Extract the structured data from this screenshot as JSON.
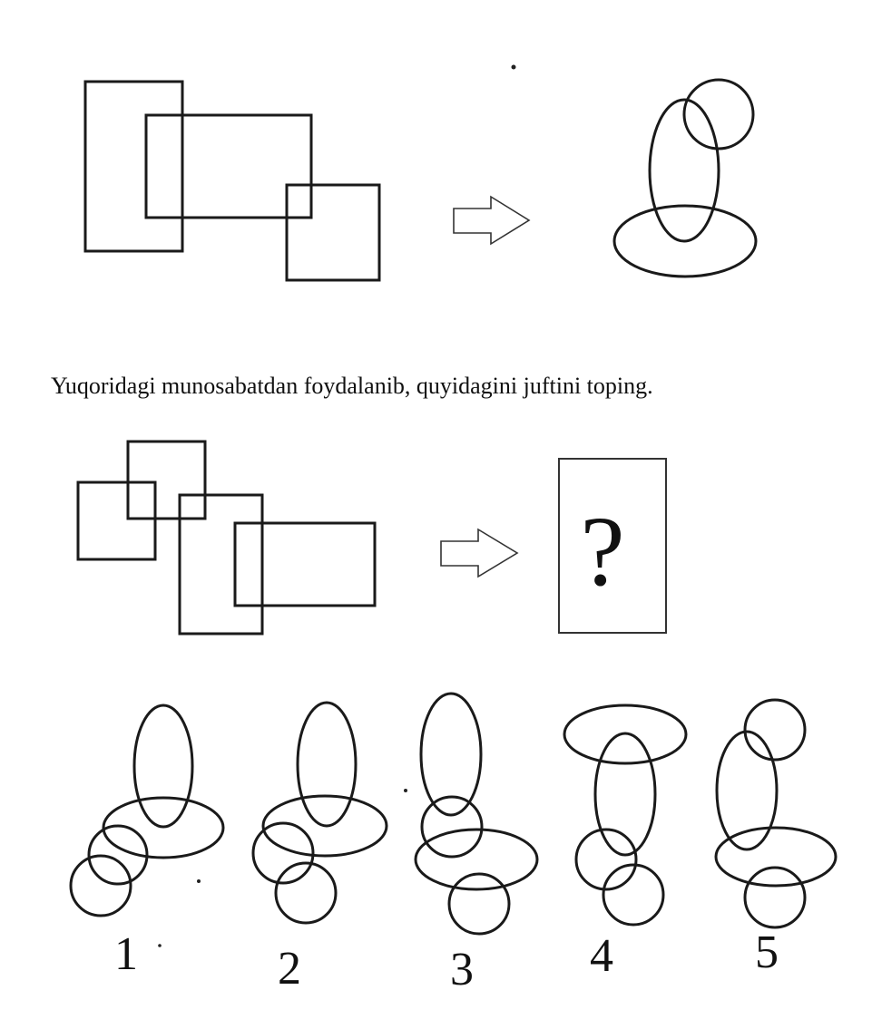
{
  "instruction": "Yuqoridagi munosabatdan foydalanib, quyidagini juftini toping.",
  "unknown_symbol": "?",
  "options": [
    {
      "label": "1"
    },
    {
      "label": "2"
    },
    {
      "label": "3"
    },
    {
      "label": "4"
    },
    {
      "label": "5"
    }
  ],
  "colors": {
    "stroke": "#1a1a1a",
    "background": "#ffffff"
  }
}
